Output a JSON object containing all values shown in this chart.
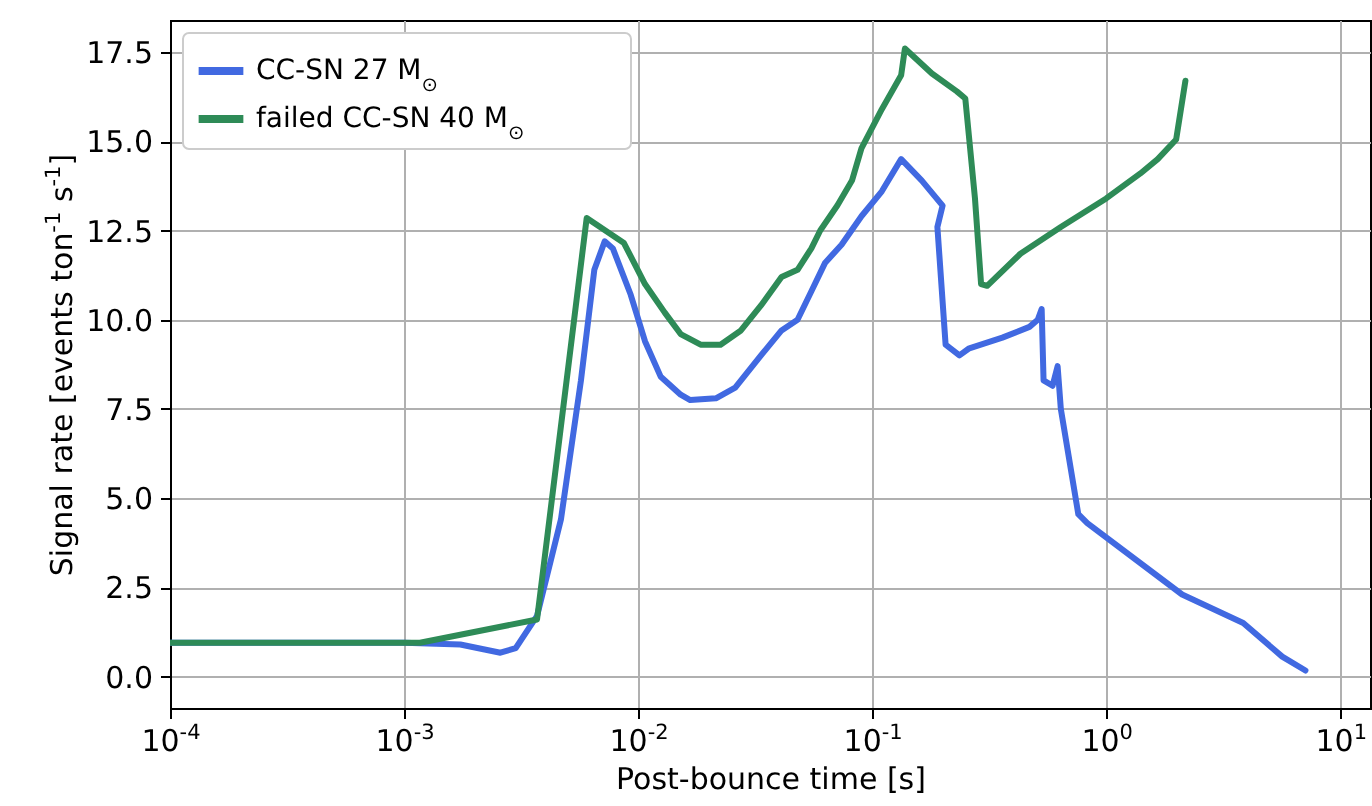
{
  "chart_data": {
    "type": "line",
    "xlabel": "Post-bounce time [s]",
    "ylabel": "Signal rate [events ton$^{-1}$ s$^{-1}$]",
    "log": "x",
    "grid": true,
    "legend": "top left",
    "line_style": "solid",
    "marker": "none",
    "xlim": [
      0.0001,
      13.4
    ],
    "ylim": [
      -0.88,
      18.4
    ],
    "xticks": [
      {
        "value": 0.0001,
        "label": "10$^{-4}$"
      },
      {
        "value": 0.001,
        "label": "10$^{-3}$"
      },
      {
        "value": 0.01,
        "label": "10$^{-2}$"
      },
      {
        "value": 0.1,
        "label": "10$^{-1}$"
      },
      {
        "value": 1,
        "label": "10$^{0}$"
      },
      {
        "value": 10,
        "label": "10$^{1}$"
      }
    ],
    "yticks": [
      {
        "value": 0,
        "label": "0.0"
      },
      {
        "value": 2.5,
        "label": "2.5"
      },
      {
        "value": 5,
        "label": "5.0"
      },
      {
        "value": 7.5,
        "label": "7.5"
      },
      {
        "value": 10,
        "label": "10.0"
      },
      {
        "value": 12.5,
        "label": "12.5"
      },
      {
        "value": 15,
        "label": "15.0"
      },
      {
        "value": 17.5,
        "label": "17.5"
      }
    ],
    "series": [
      {
        "name": "CC-SN 27 M$_{⊙}$",
        "color": "#4169e1",
        "x": [
          0.0001,
          0.001,
          0.00174,
          0.00258,
          0.003,
          0.0037,
          0.00468,
          0.0057,
          0.0065,
          0.0072,
          0.0078,
          0.0093,
          0.0107,
          0.0125,
          0.0152,
          0.0167,
          0.0215,
          0.026,
          0.0335,
          0.041,
          0.048,
          0.055,
          0.063,
          0.074,
          0.09,
          0.11,
          0.133,
          0.163,
          0.2,
          0.19,
          0.206,
          0.236,
          0.26,
          0.36,
          0.47,
          0.51,
          0.53,
          0.54,
          0.59,
          0.62,
          0.64,
          0.76,
          0.83,
          2.11,
          3.85,
          5.65,
          7.1
        ],
        "values": [
          0.95,
          0.95,
          0.9,
          0.67,
          0.8,
          1.7,
          4.4,
          8.3,
          11.4,
          12.2,
          12.0,
          10.7,
          9.4,
          8.4,
          7.9,
          7.75,
          7.8,
          8.1,
          9.0,
          9.7,
          10.0,
          10.8,
          11.6,
          12.1,
          12.9,
          13.6,
          14.5,
          13.9,
          13.2,
          12.6,
          9.3,
          9.0,
          9.2,
          9.5,
          9.8,
          10.0,
          10.3,
          8.3,
          8.15,
          8.7,
          7.5,
          4.55,
          4.3,
          2.3,
          1.5,
          0.56,
          0.17
        ]
      },
      {
        "name": "failed CC-SN 40 M$_{⊙}$",
        "color": "#2e8b57",
        "x": [
          0.0001,
          0.00117,
          0.0037,
          0.00603,
          0.0087,
          0.0107,
          0.013,
          0.0152,
          0.0185,
          0.0225,
          0.0275,
          0.0335,
          0.041,
          0.048,
          0.055,
          0.06,
          0.071,
          0.082,
          0.09,
          0.11,
          0.133,
          0.138,
          0.18,
          0.23,
          0.25,
          0.275,
          0.292,
          0.31,
          0.43,
          0.64,
          1.0,
          1.4,
          1.66,
          1.99,
          2.18
        ],
        "values": [
          0.95,
          0.95,
          1.6,
          12.85,
          12.15,
          11.0,
          10.2,
          9.6,
          9.3,
          9.3,
          9.7,
          10.4,
          11.2,
          11.4,
          12.0,
          12.5,
          13.2,
          13.9,
          14.8,
          15.9,
          16.85,
          17.6,
          16.9,
          16.4,
          16.2,
          13.4,
          11.0,
          10.95,
          11.85,
          12.6,
          13.4,
          14.1,
          14.5,
          15.05,
          16.7
        ]
      }
    ]
  }
}
